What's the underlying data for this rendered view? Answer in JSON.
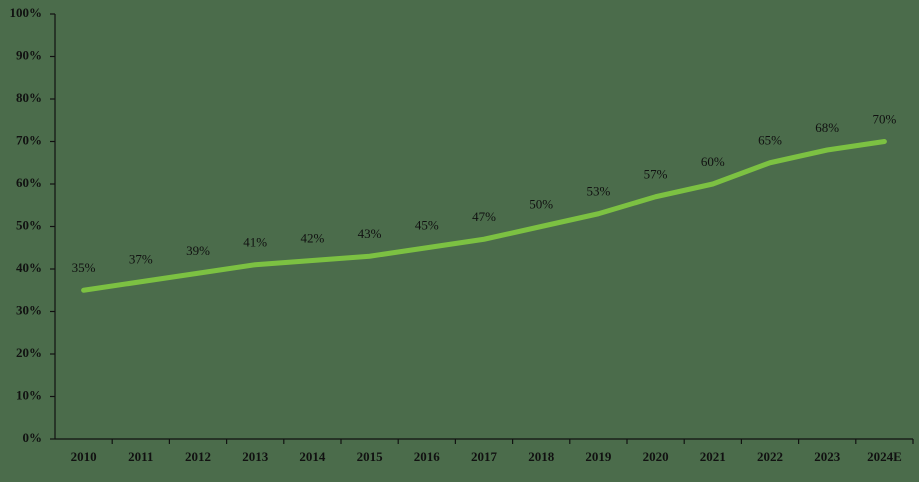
{
  "chart_data": {
    "type": "line",
    "categories": [
      "2010",
      "2011",
      "2012",
      "2013",
      "2014",
      "2015",
      "2016",
      "2017",
      "2018",
      "2019",
      "2020",
      "2021",
      "2022",
      "2023",
      "2024E"
    ],
    "values": [
      35,
      37,
      39,
      41,
      42,
      43,
      45,
      47,
      50,
      53,
      57,
      60,
      65,
      68,
      70
    ],
    "value_labels": [
      "35%",
      "37%",
      "39%",
      "41%",
      "42%",
      "43%",
      "45%",
      "47%",
      "50%",
      "53%",
      "57%",
      "60%",
      "65%",
      "68%",
      "70%"
    ],
    "color": "#7cc142",
    "ylim": [
      0,
      100
    ],
    "yticks": [
      {
        "value": 0,
        "label": "0%"
      },
      {
        "value": 10,
        "label": "10%"
      },
      {
        "value": 20,
        "label": "20%"
      },
      {
        "value": 30,
        "label": "30%"
      },
      {
        "value": 40,
        "label": "40%"
      },
      {
        "value": 50,
        "label": "50%"
      },
      {
        "value": 60,
        "label": "60%"
      },
      {
        "value": 70,
        "label": "70%"
      },
      {
        "value": 80,
        "label": "80%"
      },
      {
        "value": 90,
        "label": "90%"
      },
      {
        "value": 100,
        "label": "100%"
      }
    ],
    "grid": false
  }
}
